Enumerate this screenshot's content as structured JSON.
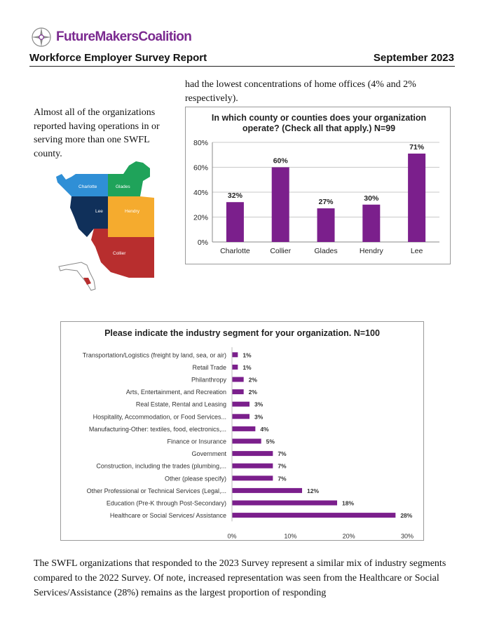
{
  "header": {
    "logo_text": "FutureMakersCoalition",
    "report_title": "Workforce Employer Survey Report",
    "report_date": "September 2023"
  },
  "text": {
    "top_paragraph": "had the lowest concentrations of home offices (4% and 2% respectively).",
    "left_paragraph": "Almost all of the organizations reported having operations in or serving more than one SWFL county.",
    "bottom_paragraph": "The SWFL organizations that responded to the 2023 Survey represent a similar mix of industry segments compared to the 2022 Survey.  Of note, increased representation was seen from the Healthcare or Social Services/Assistance (28%) remains as the largest proportion of responding"
  },
  "map": {
    "regions": [
      {
        "name": "Charlotte",
        "color": "#2f8fd6"
      },
      {
        "name": "Glades",
        "color": "#1fa35a"
      },
      {
        "name": "Lee",
        "color": "#10305a"
      },
      {
        "name": "Hendry",
        "color": "#f5ab2e"
      },
      {
        "name": "Collier",
        "color": "#b82e2e"
      }
    ]
  },
  "colors": {
    "bar": "#7b1f8c",
    "brand": "#7b2a90"
  },
  "chart_data": [
    {
      "type": "bar",
      "title": "In which county or counties does your organization operate? (Check all that apply.)  N=99",
      "categories": [
        "Charlotte",
        "Collier",
        "Glades",
        "Hendry",
        "Lee"
      ],
      "values": [
        32,
        60,
        27,
        30,
        71
      ],
      "data_labels": [
        "32%",
        "60%",
        "27%",
        "30%",
        "71%"
      ],
      "y_ticks": [
        "0%",
        "20%",
        "40%",
        "60%",
        "80%"
      ],
      "ylim": [
        0,
        80
      ],
      "grid": true,
      "xlabel": "",
      "ylabel": ""
    },
    {
      "type": "bar",
      "orientation": "horizontal",
      "title": "Please indicate the industry segment for your organization.  N=100",
      "categories": [
        "Transportation/Logistics (freight by land, sea, or air)",
        "Retail Trade",
        "Philanthropy",
        "Arts, Entertainment, and Recreation",
        "Real Estate, Rental and Leasing",
        "Hospitality, Accommodation, or Food Services...",
        "Manufacturing-Other: textiles, food, electronics,...",
        "Finance or Insurance",
        "Government",
        "Construction, including the trades (plumbing,...",
        "Other (please specify)",
        "Other Professional or Technical Services (Legal,...",
        "Education (Pre-K through Post-Secondary)",
        "Healthcare or Social Services/ Assistance"
      ],
      "values": [
        1,
        1,
        2,
        2,
        3,
        3,
        4,
        5,
        7,
        7,
        7,
        12,
        18,
        28
      ],
      "data_labels": [
        "1%",
        "1%",
        "2%",
        "2%",
        "3%",
        "3%",
        "4%",
        "5%",
        "7%",
        "7%",
        "7%",
        "12%",
        "18%",
        "28%"
      ],
      "x_ticks": [
        "0%",
        "10%",
        "20%",
        "30%"
      ],
      "xlim": [
        0,
        30
      ],
      "grid": false,
      "xlabel": "",
      "ylabel": ""
    }
  ]
}
